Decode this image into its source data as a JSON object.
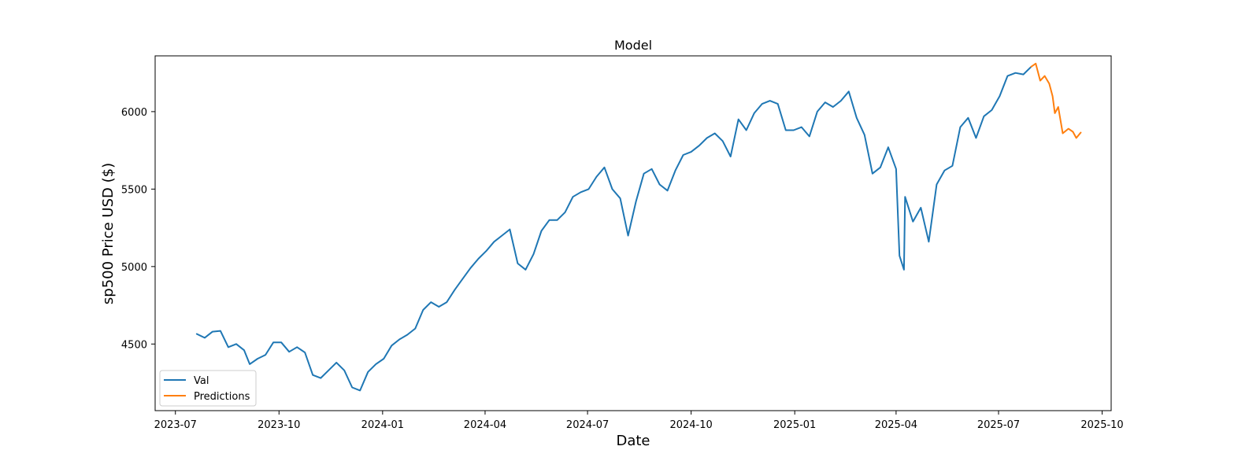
{
  "chart_data": {
    "type": "line",
    "title": "Model",
    "xlabel": "Date",
    "ylabel": "sp500 Price USD ($)",
    "xlim": [
      "2023-06-13",
      "2025-10-09"
    ],
    "ylim": [
      4070,
      6360
    ],
    "x_ticks": [
      "2023-07",
      "2023-10",
      "2024-01",
      "2024-04",
      "2024-07",
      "2024-10",
      "2025-01",
      "2025-04",
      "2025-07",
      "2025-10"
    ],
    "y_ticks": [
      4500,
      5000,
      5500,
      6000
    ],
    "grid": false,
    "legend": {
      "placement": "lower-left"
    },
    "series": [
      {
        "name": "Val",
        "color": "#1f77b4",
        "points": [
          [
            "2023-07-20",
            4565
          ],
          [
            "2023-07-27",
            4540
          ],
          [
            "2023-08-03",
            4580
          ],
          [
            "2023-08-10",
            4585
          ],
          [
            "2023-08-17",
            4480
          ],
          [
            "2023-08-24",
            4500
          ],
          [
            "2023-08-31",
            4460
          ],
          [
            "2023-09-05",
            4370
          ],
          [
            "2023-09-12",
            4405
          ],
          [
            "2023-09-19",
            4430
          ],
          [
            "2023-09-26",
            4510
          ],
          [
            "2023-10-03",
            4510
          ],
          [
            "2023-10-10",
            4450
          ],
          [
            "2023-10-17",
            4480
          ],
          [
            "2023-10-24",
            4445
          ],
          [
            "2023-10-31",
            4300
          ],
          [
            "2023-11-07",
            4280
          ],
          [
            "2023-11-14",
            4330
          ],
          [
            "2023-11-21",
            4380
          ],
          [
            "2023-11-28",
            4330
          ],
          [
            "2023-12-05",
            4220
          ],
          [
            "2023-12-12",
            4200
          ],
          [
            "2023-12-19",
            4320
          ],
          [
            "2023-12-26",
            4370
          ],
          [
            "2024-01-02",
            4405
          ],
          [
            "2024-01-09",
            4490
          ],
          [
            "2024-01-16",
            4530
          ],
          [
            "2024-01-23",
            4560
          ],
          [
            "2024-01-30",
            4600
          ],
          [
            "2024-02-06",
            4720
          ],
          [
            "2024-02-13",
            4770
          ],
          [
            "2024-02-20",
            4740
          ],
          [
            "2024-02-27",
            4770
          ],
          [
            "2024-03-05",
            4850
          ],
          [
            "2024-03-12",
            4920
          ],
          [
            "2024-03-19",
            4990
          ],
          [
            "2024-03-26",
            5050
          ],
          [
            "2024-04-02",
            5100
          ],
          [
            "2024-04-09",
            5160
          ],
          [
            "2024-04-16",
            5200
          ],
          [
            "2024-04-23",
            5240
          ],
          [
            "2024-04-30",
            5020
          ],
          [
            "2024-05-07",
            4980
          ],
          [
            "2024-05-14",
            5080
          ],
          [
            "2024-05-21",
            5230
          ],
          [
            "2024-05-28",
            5300
          ],
          [
            "2024-06-04",
            5300
          ],
          [
            "2024-06-11",
            5350
          ],
          [
            "2024-06-18",
            5450
          ],
          [
            "2024-06-25",
            5480
          ],
          [
            "2024-07-02",
            5500
          ],
          [
            "2024-07-09",
            5580
          ],
          [
            "2024-07-16",
            5640
          ],
          [
            "2024-07-23",
            5500
          ],
          [
            "2024-07-30",
            5440
          ],
          [
            "2024-08-06",
            5200
          ],
          [
            "2024-08-13",
            5420
          ],
          [
            "2024-08-20",
            5600
          ],
          [
            "2024-08-27",
            5630
          ],
          [
            "2024-09-03",
            5530
          ],
          [
            "2024-09-10",
            5490
          ],
          [
            "2024-09-17",
            5620
          ],
          [
            "2024-09-24",
            5720
          ],
          [
            "2024-10-01",
            5740
          ],
          [
            "2024-10-08",
            5780
          ],
          [
            "2024-10-15",
            5830
          ],
          [
            "2024-10-22",
            5860
          ],
          [
            "2024-10-29",
            5810
          ],
          [
            "2024-11-05",
            5710
          ],
          [
            "2024-11-12",
            5950
          ],
          [
            "2024-11-19",
            5880
          ],
          [
            "2024-11-26",
            5990
          ],
          [
            "2024-12-03",
            6050
          ],
          [
            "2024-12-10",
            6070
          ],
          [
            "2024-12-17",
            6050
          ],
          [
            "2024-12-24",
            5880
          ],
          [
            "2024-12-31",
            5880
          ],
          [
            "2025-01-07",
            5900
          ],
          [
            "2025-01-14",
            5840
          ],
          [
            "2025-01-21",
            6000
          ],
          [
            "2025-01-28",
            6060
          ],
          [
            "2025-02-04",
            6030
          ],
          [
            "2025-02-11",
            6070
          ],
          [
            "2025-02-18",
            6130
          ],
          [
            "2025-02-25",
            5960
          ],
          [
            "2025-03-04",
            5850
          ],
          [
            "2025-03-11",
            5600
          ],
          [
            "2025-03-18",
            5640
          ],
          [
            "2025-03-25",
            5770
          ],
          [
            "2025-04-01",
            5630
          ],
          [
            "2025-04-04",
            5070
          ],
          [
            "2025-04-08",
            4980
          ],
          [
            "2025-04-09",
            5450
          ],
          [
            "2025-04-16",
            5290
          ],
          [
            "2025-04-23",
            5380
          ],
          [
            "2025-04-30",
            5160
          ],
          [
            "2025-05-07",
            5530
          ],
          [
            "2025-05-14",
            5620
          ],
          [
            "2025-05-21",
            5650
          ],
          [
            "2025-05-28",
            5900
          ],
          [
            "2025-06-04",
            5960
          ],
          [
            "2025-06-11",
            5830
          ],
          [
            "2025-06-18",
            5970
          ],
          [
            "2025-06-25",
            6010
          ],
          [
            "2025-07-02",
            6100
          ],
          [
            "2025-07-09",
            6230
          ],
          [
            "2025-07-16",
            6250
          ],
          [
            "2025-07-23",
            6240
          ],
          [
            "2025-07-30",
            6290
          ]
        ]
      },
      {
        "name": "Predictions",
        "color": "#ff7f0e",
        "points": [
          [
            "2025-07-30",
            6290
          ],
          [
            "2025-08-03",
            6310
          ],
          [
            "2025-08-07",
            6200
          ],
          [
            "2025-08-11",
            6230
          ],
          [
            "2025-08-15",
            6180
          ],
          [
            "2025-08-18",
            6100
          ],
          [
            "2025-08-20",
            5990
          ],
          [
            "2025-08-23",
            6030
          ],
          [
            "2025-08-27",
            5860
          ],
          [
            "2025-09-01",
            5890
          ],
          [
            "2025-09-05",
            5870
          ],
          [
            "2025-09-08",
            5830
          ],
          [
            "2025-09-12",
            5865
          ]
        ]
      }
    ]
  }
}
